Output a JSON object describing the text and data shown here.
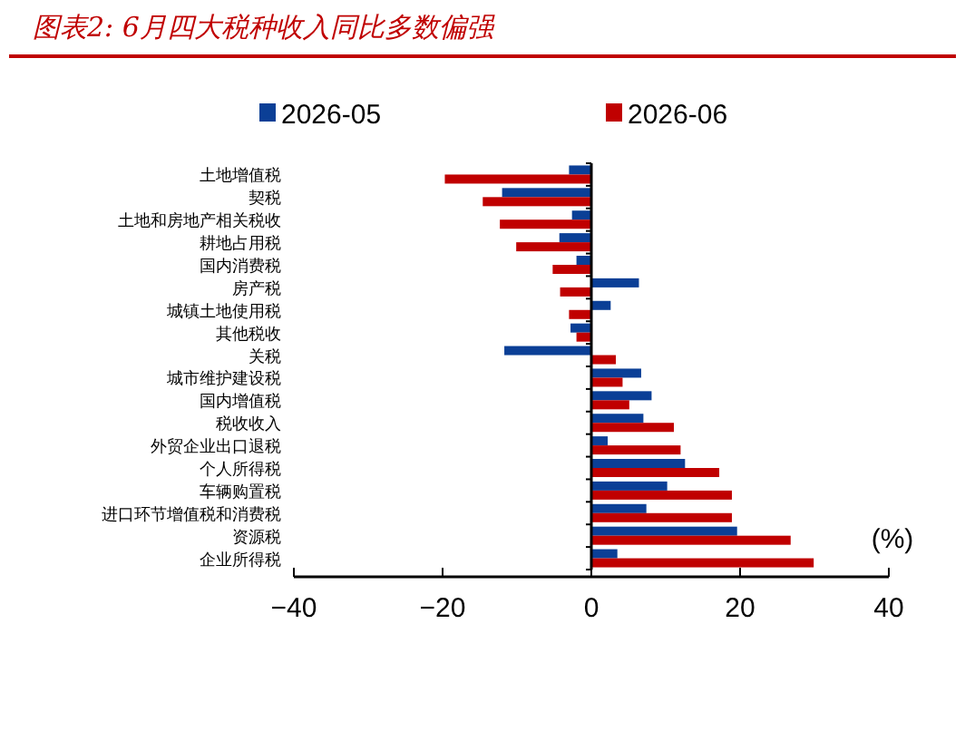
{
  "chart_data": {
    "type": "bar",
    "orientation": "horizontal",
    "title": "图表2:  6月四大税种收入同比多数偏强",
    "xlabel": "(%)",
    "categories": [
      "土地增值税",
      "契税",
      "土地和房地产相关税收",
      "耕地占用税",
      "国内消费税",
      "房产税",
      "城镇土地使用税",
      "其他税收",
      "关税",
      "城市维护建设税",
      "国内增值税",
      "税收收入",
      "外贸企业出口退税",
      "个人所得税",
      "车辆购置税",
      "进口环节增值税和消费税",
      "资源税",
      "企业所得税"
    ],
    "series": [
      {
        "name": "2026-05",
        "color": "#0b3f96",
        "values": [
          -3.0,
          -12.0,
          -2.6,
          -4.3,
          -2.0,
          6.4,
          2.6,
          -2.8,
          -11.7,
          6.7,
          8.1,
          7.0,
          2.2,
          12.6,
          10.2,
          7.4,
          19.6,
          3.5
        ]
      },
      {
        "name": "2026-06",
        "color": "#c00000",
        "values": [
          -19.7,
          -14.6,
          -12.3,
          -10.1,
          -5.2,
          -4.2,
          -3.0,
          -2.0,
          3.3,
          4.2,
          5.1,
          11.1,
          12.0,
          17.2,
          18.9,
          18.9,
          26.8,
          29.9
        ]
      }
    ],
    "xlim": [
      -40,
      40
    ],
    "xticks": [
      -40,
      -20,
      0,
      20,
      40
    ],
    "legend": "top"
  }
}
